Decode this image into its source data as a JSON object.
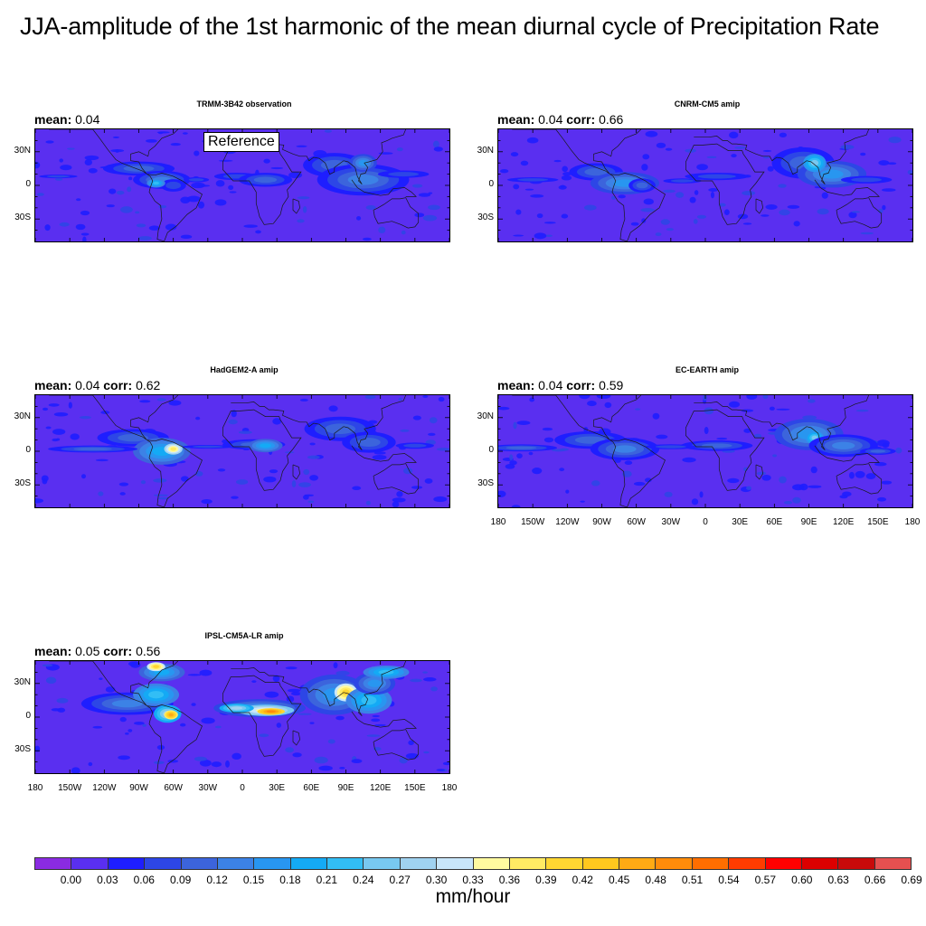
{
  "title": "JJA-amplitude of the 1st harmonic of the mean diurnal cycle of Precipitation Rate",
  "units": "mm/hour",
  "reference_label": "Reference",
  "y_ticks": [
    "30N",
    "0",
    "30S"
  ],
  "x_ticks": [
    "180",
    "150W",
    "120W",
    "90W",
    "60W",
    "30W",
    "0",
    "30E",
    "60E",
    "90E",
    "120E",
    "150E",
    "180"
  ],
  "mean_label": "mean:",
  "corr_label": "corr:",
  "panels": [
    {
      "title": "TRMM-3B42 observation",
      "mean": "0.04",
      "corr": ""
    },
    {
      "title": "CNRM-CM5 amip",
      "mean": "0.04",
      "corr": "0.66"
    },
    {
      "title": "HadGEM2-A amip",
      "mean": "0.04",
      "corr": "0.62"
    },
    {
      "title": "EC-EARTH amip",
      "mean": "0.04",
      "corr": "0.59"
    },
    {
      "title": "IPSL-CM5A-LR amip",
      "mean": "0.05",
      "corr": "0.56"
    }
  ],
  "colorbar": {
    "labels": [
      "0.00",
      "0.03",
      "0.06",
      "0.09",
      "0.12",
      "0.15",
      "0.18",
      "0.21",
      "0.24",
      "0.27",
      "0.30",
      "0.33",
      "0.36",
      "0.39",
      "0.42",
      "0.45",
      "0.48",
      "0.51",
      "0.54",
      "0.57",
      "0.60",
      "0.63",
      "0.66",
      "0.69"
    ],
    "colors": [
      "#8a2be2",
      "#5a2ff0",
      "#1e1eff",
      "#2d46e6",
      "#3c64dc",
      "#3c82e6",
      "#2896f0",
      "#14aaf5",
      "#32bef5",
      "#78c8f0",
      "#a0d2f0",
      "#c8e6fa",
      "#fffaa0",
      "#ffeb64",
      "#ffd732",
      "#ffc81e",
      "#ffaa14",
      "#ff8c0a",
      "#ff6e00",
      "#ff3c00",
      "#ff0000",
      "#dc0000",
      "#c80a0a",
      "#e65050"
    ]
  },
  "chart_data": {
    "type": "heatmap",
    "title": "JJA-amplitude of the 1st harmonic of the mean diurnal cycle of Precipitation Rate",
    "colorbar_units": "mm/hour",
    "levels": [
      0.0,
      0.03,
      0.06,
      0.09,
      0.12,
      0.15,
      0.18,
      0.21,
      0.24,
      0.27,
      0.3,
      0.33,
      0.36,
      0.39,
      0.42,
      0.45,
      0.48,
      0.51,
      0.54,
      0.57,
      0.6,
      0.63,
      0.66,
      0.69
    ],
    "x_ticks": [
      "180",
      "150W",
      "120W",
      "90W",
      "60W",
      "30W",
      "0",
      "30E",
      "60E",
      "90E",
      "120E",
      "150E",
      "180"
    ],
    "y_ticks": [
      "30N",
      "0",
      "30S"
    ],
    "maps": [
      {
        "name": "TRMM-3B42 observation",
        "mean": 0.04
      },
      {
        "name": "CNRM-CM5 amip",
        "mean": 0.04,
        "corr": 0.66
      },
      {
        "name": "HadGEM2-A amip",
        "mean": 0.04,
        "corr": 0.62
      },
      {
        "name": "EC-EARTH amip",
        "mean": 0.04,
        "corr": 0.59
      },
      {
        "name": "IPSL-CM5A-LR amip",
        "mean": 0.05,
        "corr": 0.56
      }
    ]
  }
}
